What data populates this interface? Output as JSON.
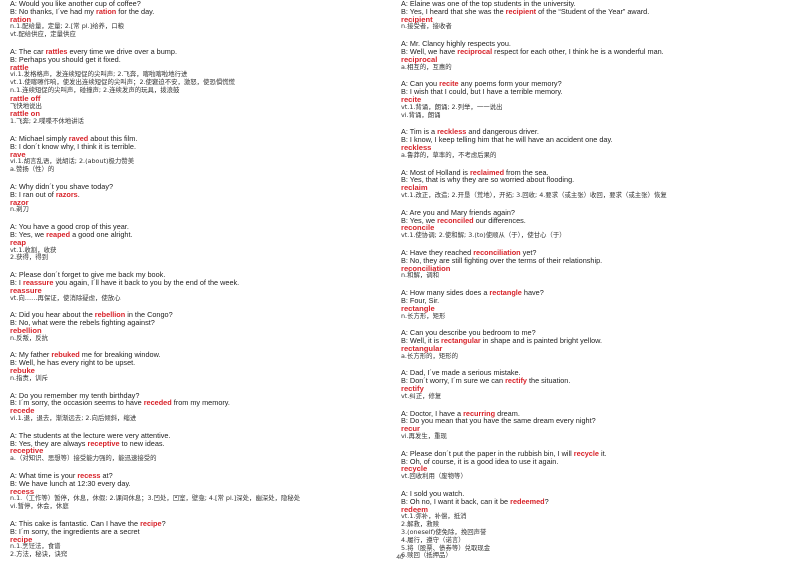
{
  "page_number": "40",
  "left_entries": [
    {
      "lines": [
        {
          "t": "d",
          "p": [
            "A: Would you like another cup of coffee?"
          ]
        },
        {
          "t": "d",
          "p": [
            "B: No thanks, I´ve had my ",
            {
              "k": "ration"
            },
            " for the day."
          ]
        },
        {
          "t": "h",
          "s": "ration"
        },
        {
          "t": "f",
          "s": "n.1.配给量，定量; 2.[常 pl.]给养，口粮"
        },
        {
          "t": "f",
          "s": "vt.配给供应，定量供应"
        }
      ]
    },
    {
      "lines": [
        {
          "t": "d",
          "p": [
            "A: The car ",
            {
              "k": "rattles"
            },
            " every time we drive over a bump."
          ]
        },
        {
          "t": "d",
          "p": [
            "B: Perhaps you should get it fixed."
          ]
        },
        {
          "t": "h",
          "s": "rattle"
        },
        {
          "t": "f",
          "s": "vi.1.发格格声，发连续短促的尖叫声; 2.飞奔，喀啦喀啦地行进"
        },
        {
          "t": "f",
          "s": "vt.1.使喀嚓作响，使发出连续短促的尖叫声；2.使窘迫不安，激怒，使恐惧慌慌"
        },
        {
          "t": "f",
          "s": "n.1.连续短促的尖叫声，碰撞声; 2.连续发声的玩具，拨浪鼓"
        },
        {
          "t": "h",
          "s": "rattle off"
        },
        {
          "t": "f",
          "s": "飞快地说出"
        },
        {
          "t": "h",
          "s": "rattle on"
        },
        {
          "t": "f",
          "s": "1.飞奔; 2.喋喋不休地讲话"
        }
      ]
    },
    {
      "lines": [
        {
          "t": "d",
          "p": [
            "A: Michael simply ",
            {
              "k": "raved"
            },
            " about this film."
          ]
        },
        {
          "t": "d",
          "p": [
            "B: I don´t know why, I think it is terrible."
          ]
        },
        {
          "t": "h",
          "s": "rave"
        },
        {
          "t": "f",
          "s": "vi.1.胡言乱语，说胡话; 2.(about)极力赞美"
        },
        {
          "t": "f",
          "s": "a.赞扬（性）的"
        }
      ]
    },
    {
      "lines": [
        {
          "t": "d",
          "p": [
            "A: Why didn´t you shave today?"
          ]
        },
        {
          "t": "d",
          "p": [
            "B: I ran out of ",
            {
              "k": "razors"
            },
            "."
          ]
        },
        {
          "t": "h",
          "s": "razor"
        },
        {
          "t": "f",
          "s": "n.剃刀"
        }
      ]
    },
    {
      "lines": [
        {
          "t": "d",
          "p": [
            "A: You have a good crop of this year."
          ]
        },
        {
          "t": "d",
          "p": [
            "B: Yes, we ",
            {
              "k": "reaped"
            },
            " a good one alright."
          ]
        },
        {
          "t": "h",
          "s": "reap"
        },
        {
          "t": "f",
          "s": "vt.1.收割，收获"
        },
        {
          "t": "f",
          "s": "2.获得，得到"
        }
      ]
    },
    {
      "lines": [
        {
          "t": "d",
          "p": [
            "A: Please don´t forget to give me back my book."
          ]
        },
        {
          "t": "d",
          "p": [
            "B: I ",
            {
              "k": "reassure"
            },
            " you again, I´ll have it back to you by the end of the week."
          ]
        },
        {
          "t": "h",
          "s": "reassure"
        },
        {
          "t": "f",
          "s": "vt.向……再保证，使消除疑虑，使放心"
        }
      ]
    },
    {
      "lines": [
        {
          "t": "d",
          "p": [
            "A: Did you hear about the ",
            {
              "k": "rebellion"
            },
            " in the Congo?"
          ]
        },
        {
          "t": "d",
          "p": [
            "B: No, what were the rebels fighting against?"
          ]
        },
        {
          "t": "h",
          "s": "rebellion"
        },
        {
          "t": "f",
          "s": "n.反叛，反抗"
        }
      ]
    },
    {
      "lines": [
        {
          "t": "d",
          "p": [
            "A: My father ",
            {
              "k": "rebuked"
            },
            " me for breaking window."
          ]
        },
        {
          "t": "d",
          "p": [
            "B: Well, he has every right to be upset."
          ]
        },
        {
          "t": "h",
          "s": "rebuke"
        },
        {
          "t": "f",
          "s": "n.指责，训斥"
        }
      ]
    },
    {
      "lines": [
        {
          "t": "d",
          "p": [
            "A: Do you remember my tenth birthday?"
          ]
        },
        {
          "t": "d",
          "p": [
            "B: I´m sorry, the occasion seems to have ",
            {
              "k": "receded"
            },
            " from my memory."
          ]
        },
        {
          "t": "h",
          "s": "recede"
        },
        {
          "t": "f",
          "s": "vi.1.退，退去，渐渐远去; 2.向后倾斜，缩进"
        }
      ]
    },
    {
      "lines": [
        {
          "t": "d",
          "p": [
            "A: The students at the lecture were very attentive."
          ]
        },
        {
          "t": "d",
          "p": [
            "B: Yes, they are always ",
            {
              "k": "receptive"
            },
            " to new ideas."
          ]
        },
        {
          "t": "h",
          "s": "receptive"
        },
        {
          "t": "f",
          "s": "a.（对知识、思想等）接受能力强的，能迅速接受的"
        }
      ]
    },
    {
      "lines": [
        {
          "t": "d",
          "p": [
            "A: What time is your ",
            {
              "k": "recess"
            },
            " at?"
          ]
        },
        {
          "t": "d",
          "p": [
            "B: We have lunch at 12:30 every day."
          ]
        },
        {
          "t": "h",
          "s": "recess"
        },
        {
          "t": "f",
          "s": "n.1.（工作等）暂停，休息，休假; 2.课间休息；3.凹处，凹室，壁龛; 4.[常 pl.]深处，幽深处，隐秘处"
        },
        {
          "t": "f",
          "s": "vi.暂停，休会，休庭"
        }
      ]
    },
    {
      "lines": [
        {
          "t": "d",
          "p": [
            "A: This cake is fantastic. Can I have the ",
            {
              "k": "recipe"
            },
            "?"
          ]
        },
        {
          "t": "d",
          "p": [
            "B: I´m sorry, the ingredients are a secret"
          ]
        },
        {
          "t": "h",
          "s": "recipe"
        },
        {
          "t": "f",
          "s": "n.1.烹饪法，食谱"
        },
        {
          "t": "f",
          "s": "2.方法，秘诀，诀窍"
        }
      ]
    }
  ],
  "right_entries": [
    {
      "lines": [
        {
          "t": "d",
          "p": [
            "A: Elaine was one of the top students in the university."
          ]
        },
        {
          "t": "d",
          "p": [
            "B: Yes, I heard that she was the ",
            {
              "k": "recipient"
            },
            " of the “Student of the Year” award."
          ]
        },
        {
          "t": "h",
          "s": "recipient"
        },
        {
          "t": "f",
          "s": "n.接受者，接收者"
        }
      ]
    },
    {
      "lines": [
        {
          "t": "d",
          "p": [
            "A: Mr. Clancy highly respects you."
          ]
        },
        {
          "t": "d",
          "p": [
            "B: Well, we have ",
            {
              "k": "reciprocal"
            },
            " respect for each other, I think he is a wonderful man."
          ]
        },
        {
          "t": "h",
          "s": "reciprocal"
        },
        {
          "t": "f",
          "s": "a.相互的，互惠的"
        }
      ]
    },
    {
      "lines": [
        {
          "t": "d",
          "p": [
            "A: Can you ",
            {
              "k": "recite"
            },
            " any poems form your memory?"
          ]
        },
        {
          "t": "d",
          "p": [
            "B: I wish that I could, but I have a terrible memory."
          ]
        },
        {
          "t": "h",
          "s": "recite"
        },
        {
          "t": "f",
          "s": "vt.1.背诵，朗诵; 2.列举，一一说出"
        },
        {
          "t": "f",
          "s": "vi.背诵，朗诵"
        }
      ]
    },
    {
      "lines": [
        {
          "t": "d",
          "p": [
            "A: Tim is a ",
            {
              "k": "reckless"
            },
            " and dangerous driver."
          ]
        },
        {
          "t": "d",
          "p": [
            "B: I know, I keep telling him that he will have an accident one day."
          ]
        },
        {
          "t": "h",
          "s": "reckless"
        },
        {
          "t": "f",
          "s": "a.鲁莽的，草率的，不考虑后果的"
        }
      ]
    },
    {
      "lines": [
        {
          "t": "d",
          "p": [
            "A: Most of Holland is ",
            {
              "k": "reclaimed"
            },
            " from the sea."
          ]
        },
        {
          "t": "d",
          "p": [
            "B: Yes, that is why they are so worried about flooding."
          ]
        },
        {
          "t": "h",
          "s": "reclaim"
        },
        {
          "t": "f",
          "s": "vt.1.改正，改造; 2.开垦（荒地），开拓; 3.回收; 4.要求（或主张）收回，要求（或主张）恢复"
        }
      ]
    },
    {
      "lines": [
        {
          "t": "d",
          "p": [
            "A: Are you and Mary friends again?"
          ]
        },
        {
          "t": "d",
          "p": [
            "B: Yes, we ",
            {
              "k": "reconciled"
            },
            " our differences."
          ]
        },
        {
          "t": "h",
          "s": "reconcile"
        },
        {
          "t": "f",
          "s": "vt.1.使协调; 2.使和解; 3.(to)使顺从（于），使甘心（于）"
        }
      ]
    },
    {
      "lines": [
        {
          "t": "d",
          "p": [
            "A: Have they reached ",
            {
              "k": "reconciliation"
            },
            " yet?"
          ]
        },
        {
          "t": "d",
          "p": [
            "B: No, they are still fighting over the terms of their relationship."
          ]
        },
        {
          "t": "h",
          "s": "reconciliation"
        },
        {
          "t": "f",
          "s": "n.和解，调和"
        }
      ]
    },
    {
      "lines": [
        {
          "t": "d",
          "p": [
            "A: How many sides does a ",
            {
              "k": "rectangle"
            },
            " have?"
          ]
        },
        {
          "t": "d",
          "p": [
            "B: Four, Sir."
          ]
        },
        {
          "t": "h",
          "s": "rectangle"
        },
        {
          "t": "f",
          "s": "n.长方形，矩形"
        }
      ]
    },
    {
      "lines": [
        {
          "t": "d",
          "p": [
            "A: Can you describe you bedroom to me?"
          ]
        },
        {
          "t": "d",
          "p": [
            "B: Well, it is ",
            {
              "k": "rectangular"
            },
            " in shape and is painted bright yellow."
          ]
        },
        {
          "t": "h",
          "s": "rectangular"
        },
        {
          "t": "f",
          "s": "a.长方形的，矩形的"
        }
      ]
    },
    {
      "lines": [
        {
          "t": "d",
          "p": [
            "A: Dad, I´ve made a serious mistake."
          ]
        },
        {
          "t": "d",
          "p": [
            "B: Don´t worry, I´m sure we can ",
            {
              "k": "rectify"
            },
            " the situation."
          ]
        },
        {
          "t": "h",
          "s": "rectify"
        },
        {
          "t": "f",
          "s": "vt.纠正，修复"
        }
      ]
    },
    {
      "lines": [
        {
          "t": "d",
          "p": [
            "A: Doctor, I have a ",
            {
              "k": "recurring"
            },
            " dream."
          ]
        },
        {
          "t": "d",
          "p": [
            "B: Do you mean that you have the same dream every night?"
          ]
        },
        {
          "t": "h",
          "s": "recur"
        },
        {
          "t": "f",
          "s": "vi.再发生，重现"
        }
      ]
    },
    {
      "lines": [
        {
          "t": "d",
          "p": [
            "A: Please don´t put the paper in the rubbish bin, I will ",
            {
              "k": "recycle"
            },
            " it."
          ]
        },
        {
          "t": "d",
          "p": [
            "B: Oh, of course, it is a good idea to use it again."
          ]
        },
        {
          "t": "h",
          "s": "recycle"
        },
        {
          "t": "f",
          "s": "vt.回收利用（废物等）"
        }
      ]
    },
    {
      "lines": [
        {
          "t": "d",
          "p": [
            "A: I sold you watch."
          ]
        },
        {
          "t": "d",
          "p": [
            "B: Oh no, I want it back, can it be ",
            {
              "k": "redeemed"
            },
            "?"
          ]
        },
        {
          "t": "h",
          "s": "redeem"
        },
        {
          "t": "f",
          "s": "vt.1.弥补，补偿，抵消"
        },
        {
          "t": "f",
          "s": "2.解救，救赎"
        },
        {
          "t": "f",
          "s": "3.(oneself)使免除，挽回声誉"
        },
        {
          "t": "f",
          "s": "4.履行，遵守（诺言）"
        },
        {
          "t": "f",
          "s": "5.将（股票、债券等）兑取现金"
        },
        {
          "t": "f",
          "s": "6.赎回（抵押品）"
        }
      ]
    }
  ]
}
